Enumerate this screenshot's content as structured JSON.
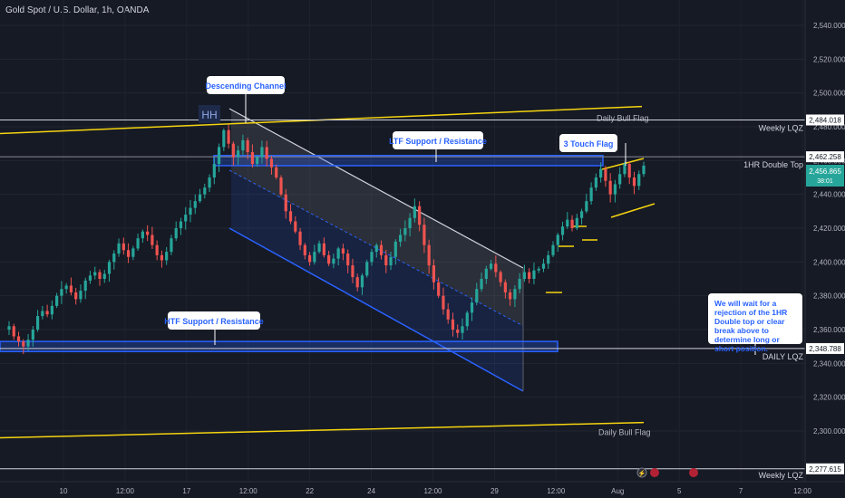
{
  "header": {
    "symbol": "Gold Spot / U.S. Dollar, 1h, OANDA"
  },
  "colors": {
    "background": "#161a25",
    "up": "#26a69a",
    "down": "#ef5350",
    "channel": "#2962ff",
    "bull_flag": "#f5d40f",
    "label_text": "#2962ff",
    "axis_text": "#b2b5be",
    "last_price_badge": "#26a69a"
  },
  "chart_data": {
    "type": "candlestick",
    "y_axis": {
      "ylim": [
        2270,
        2555
      ],
      "ticks": [
        2300,
        2320,
        2340,
        2360,
        2380,
        2400,
        2420,
        2440,
        2460,
        2480,
        2500,
        2520,
        2540
      ]
    },
    "x_axis": {
      "tick_labels": [
        "10",
        "12:00",
        "17",
        "12:00",
        "22",
        "24",
        "12:00",
        "29",
        "12:00",
        "Aug",
        "5",
        "7",
        "12:00"
      ]
    },
    "price_levels": [
      {
        "label": "Weekly LQZ",
        "value": 2484.018
      },
      {
        "label": "1HR Double Top",
        "value": 2462.258
      },
      {
        "label": "DAILY LQZ",
        "value": 2348.788
      },
      {
        "label": "Weekly LQZ",
        "value": 2277.615
      }
    ],
    "last_price": {
      "value": "2,456.865",
      "countdown": "38:01"
    },
    "trendlines": [
      {
        "label": "Daily Bull Flag",
        "from": 2476,
        "to": 2492
      },
      {
        "label": "Daily Bull Flag",
        "from": 2296,
        "to": 2305
      }
    ],
    "zones": [
      {
        "label": "LTF Support / Resistance",
        "low": 2457,
        "high": 2463
      },
      {
        "label": "HTF Support / Resistance",
        "low": 2347,
        "high": 2353
      }
    ],
    "annotations": [
      {
        "name": "descending-channel",
        "text": "Descending Channel"
      },
      {
        "name": "three-touch-flag",
        "text": "3 Touch Flag"
      },
      {
        "name": "hh-marker",
        "text": "HH"
      },
      {
        "name": "trade-plan-note",
        "text": "We will wait for a rejection of the 1HR Double top or clear break above to determine long or short position."
      }
    ],
    "closes": [
      2362,
      2356,
      2353,
      2350,
      2354,
      2360,
      2368,
      2371,
      2369,
      2374,
      2380,
      2384,
      2386,
      2382,
      2378,
      2383,
      2389,
      2392,
      2394,
      2390,
      2393,
      2400,
      2405,
      2411,
      2407,
      2403,
      2408,
      2414,
      2418,
      2416,
      2410,
      2404,
      2401,
      2406,
      2414,
      2420,
      2424,
      2428,
      2432,
      2436,
      2440,
      2444,
      2450,
      2458,
      2468,
      2478,
      2470,
      2462,
      2466,
      2472,
      2465,
      2458,
      2462,
      2468,
      2461,
      2456,
      2450,
      2440,
      2430,
      2424,
      2418,
      2410,
      2404,
      2400,
      2406,
      2411,
      2404,
      2399,
      2402,
      2408,
      2405,
      2398,
      2391,
      2385,
      2392,
      2400,
      2406,
      2410,
      2404,
      2398,
      2403,
      2412,
      2416,
      2420,
      2426,
      2433,
      2422,
      2410,
      2398,
      2388,
      2380,
      2372,
      2366,
      2360,
      2358,
      2362,
      2370,
      2376,
      2384,
      2390,
      2396,
      2399,
      2394,
      2388,
      2382,
      2378,
      2384,
      2390,
      2394,
      2390,
      2395,
      2396,
      2399,
      2404,
      2410,
      2416,
      2421,
      2425,
      2420,
      2426,
      2430,
      2436,
      2444,
      2450,
      2455,
      2448,
      2440,
      2446,
      2452,
      2458,
      2450,
      2445,
      2452,
      2457
    ]
  }
}
